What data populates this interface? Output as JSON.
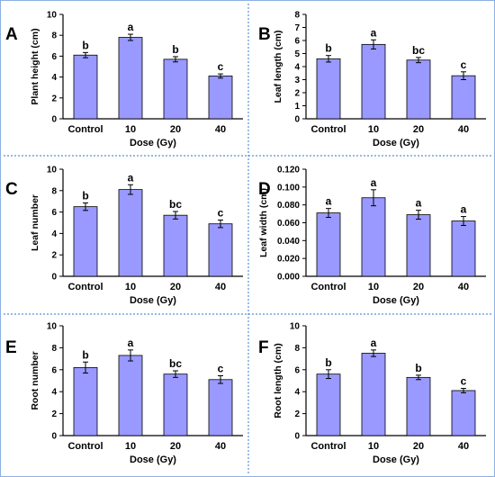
{
  "colors": {
    "bar_fill": "#9999ff",
    "bar_stroke": "#000000",
    "axis": "#000000",
    "text": "#000000",
    "divider": "#5b8fd6",
    "frame": "#8ab0e0"
  },
  "chart_data": [
    {
      "type": "bar",
      "panel_label": "A",
      "categories": [
        "Control",
        "10",
        "20",
        "40"
      ],
      "values": [
        6.1,
        7.8,
        5.7,
        4.1
      ],
      "errors": [
        0.25,
        0.3,
        0.25,
        0.2
      ],
      "letters": [
        "b",
        "a",
        "b",
        "c"
      ],
      "xlabel": "Dose (Gy)",
      "ylabel": "Plant height (cm)",
      "ylim": [
        0,
        10
      ],
      "yticks": [
        "0",
        "2",
        "4",
        "6",
        "8",
        "10"
      ]
    },
    {
      "type": "bar",
      "panel_label": "B",
      "categories": [
        "Control",
        "10",
        "20",
        "40"
      ],
      "values": [
        4.6,
        5.7,
        4.5,
        3.3
      ],
      "errors": [
        0.25,
        0.35,
        0.2,
        0.3
      ],
      "letters": [
        "b",
        "a",
        "bc",
        "c"
      ],
      "xlabel": "Dose (Gy)",
      "ylabel": "Leaf length (cm)",
      "ylim": [
        0,
        8
      ],
      "yticks": [
        "0",
        "1",
        "2",
        "3",
        "4",
        "5",
        "6",
        "7",
        "8"
      ]
    },
    {
      "type": "bar",
      "panel_label": "C",
      "categories": [
        "Control",
        "10",
        "20",
        "40"
      ],
      "values": [
        6.5,
        8.1,
        5.7,
        4.9
      ],
      "errors": [
        0.35,
        0.45,
        0.35,
        0.35
      ],
      "letters": [
        "b",
        "a",
        "bc",
        "c"
      ],
      "xlabel": "Dose (Gy)",
      "ylabel": "Leaf number",
      "ylim": [
        0,
        10
      ],
      "yticks": [
        "0",
        "2",
        "4",
        "6",
        "8",
        "10"
      ]
    },
    {
      "type": "bar",
      "panel_label": "D",
      "categories": [
        "Control",
        "10",
        "20",
        "40"
      ],
      "values": [
        0.071,
        0.088,
        0.069,
        0.062
      ],
      "errors": [
        0.005,
        0.009,
        0.005,
        0.005
      ],
      "letters": [
        "a",
        "a",
        "a",
        "a"
      ],
      "xlabel": "Dose (Gy)",
      "ylabel": "Leaf width (cm)",
      "ylim": [
        0,
        0.12
      ],
      "yticks": [
        "0.000",
        "0.020",
        "0.040",
        "0.060",
        "0.080",
        "0.100",
        "0.120"
      ]
    },
    {
      "type": "bar",
      "panel_label": "E",
      "categories": [
        "Control",
        "10",
        "20",
        "40"
      ],
      "values": [
        6.2,
        7.3,
        5.6,
        5.1
      ],
      "errors": [
        0.5,
        0.5,
        0.3,
        0.35
      ],
      "letters": [
        "b",
        "a",
        "bc",
        "c"
      ],
      "xlabel": "Dose (Gy)",
      "ylabel": "Root number",
      "ylim": [
        0,
        10
      ],
      "yticks": [
        "0",
        "2",
        "4",
        "6",
        "8",
        "10"
      ]
    },
    {
      "type": "bar",
      "panel_label": "F",
      "categories": [
        "Control",
        "10",
        "20",
        "40"
      ],
      "values": [
        5.6,
        7.5,
        5.3,
        4.1
      ],
      "errors": [
        0.4,
        0.3,
        0.2,
        0.2
      ],
      "letters": [
        "b",
        "a",
        "b",
        "c"
      ],
      "xlabel": "Dose (Gy)",
      "ylabel": "Root length (cm)",
      "ylim": [
        0,
        10
      ],
      "yticks": [
        "0",
        "2",
        "4",
        "6",
        "8",
        "10"
      ]
    }
  ]
}
